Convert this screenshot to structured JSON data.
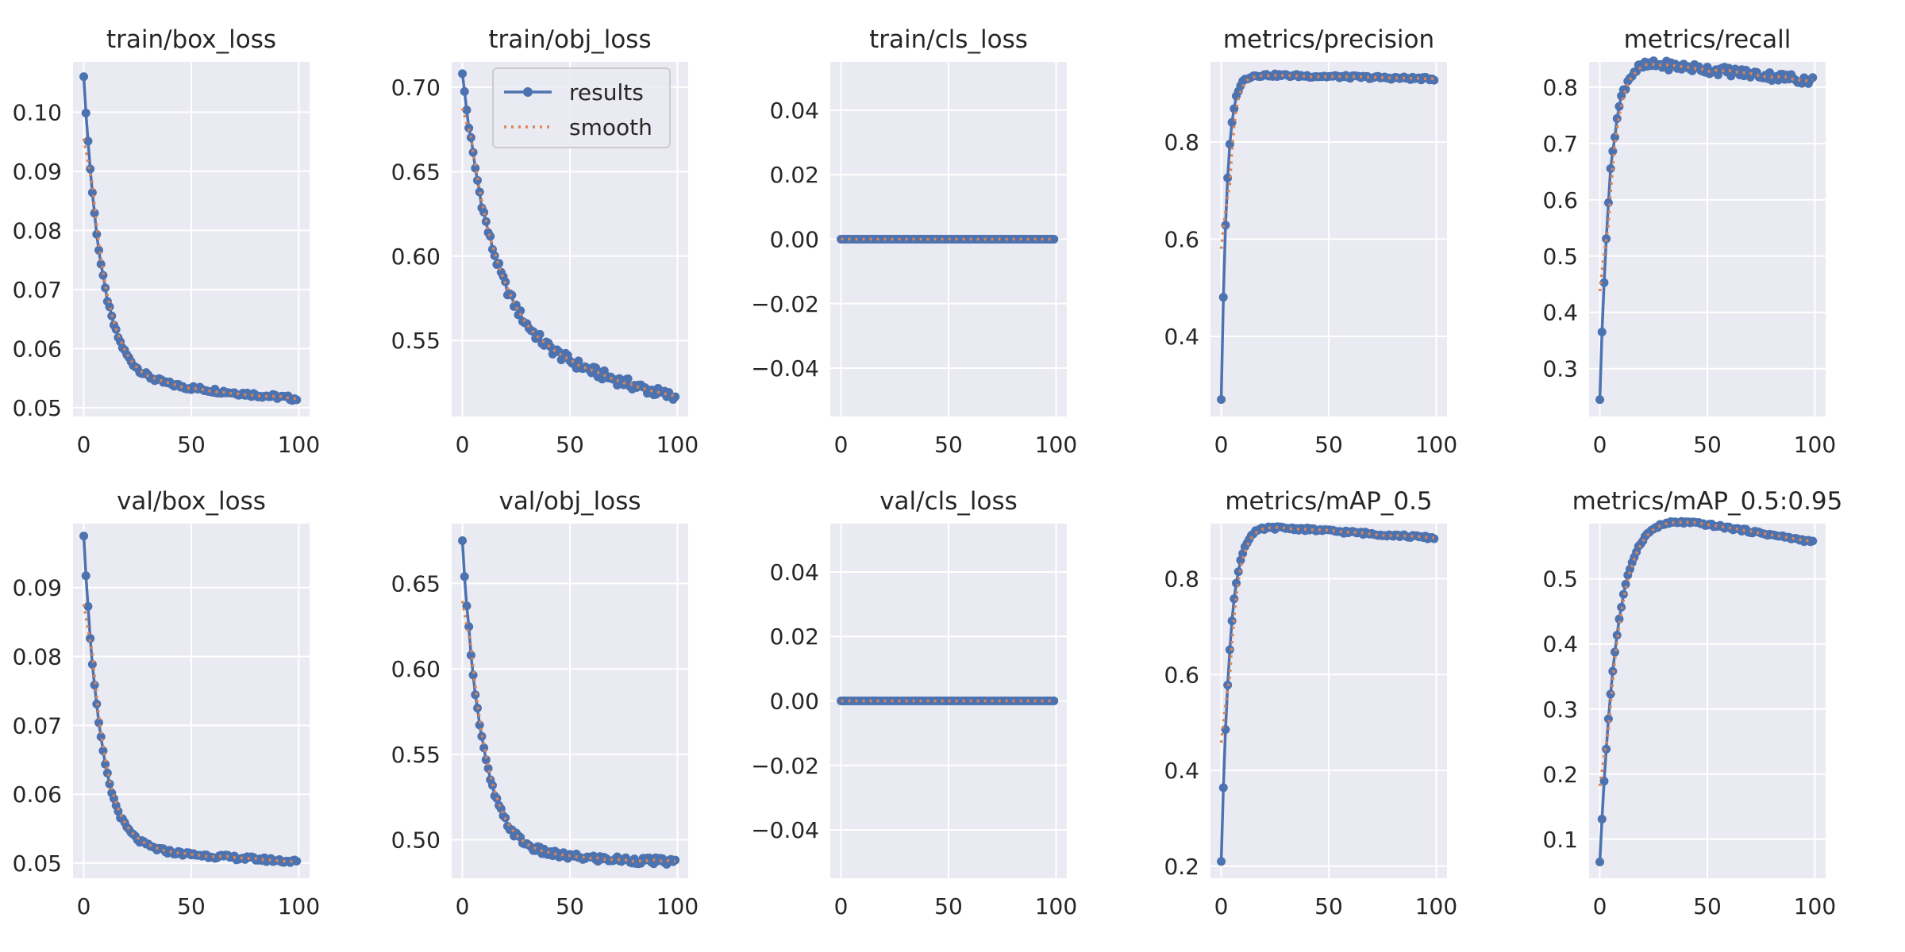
{
  "figure": {
    "background": "#ffffff",
    "axes_background": "#eaeaf2",
    "grid_color": "#ffffff",
    "results_color": "#4c72b0",
    "smooth_color": "#dd8452"
  },
  "legend": {
    "entries": [
      "results",
      "smooth"
    ],
    "placement": "top-right",
    "subplot_index": 1
  },
  "chart_data": [
    {
      "type": "line",
      "title": "train/box_loss",
      "xlim": [
        -5,
        105
      ],
      "ylim": [
        0.0485,
        0.1085
      ],
      "xticks": [
        0,
        50,
        100
      ],
      "yticks": [
        0.05,
        0.06,
        0.07,
        0.08,
        0.09,
        0.1
      ],
      "ytick_labels": [
        "0.05",
        "0.06",
        "0.07",
        "0.08",
        "0.09",
        "0.10"
      ],
      "curve": {
        "start": 0.106,
        "end": 0.0515,
        "rate": 0.12,
        "tail": 0.0035,
        "jitter": 0.0004
      },
      "series": [
        {
          "name": "results"
        },
        {
          "name": "smooth"
        }
      ]
    },
    {
      "type": "line",
      "title": "train/obj_loss",
      "xlim": [
        -5,
        105
      ],
      "ylim": [
        0.505,
        0.715
      ],
      "xticks": [
        0,
        50,
        100
      ],
      "yticks": [
        0.55,
        0.6,
        0.65,
        0.7
      ],
      "ytick_labels": [
        "0.55",
        "0.60",
        "0.65",
        "0.70"
      ],
      "curve": {
        "start": 0.708,
        "end": 0.516,
        "rate": 0.07,
        "tail": 0.035,
        "jitter": 0.003
      },
      "series": [
        {
          "name": "results"
        },
        {
          "name": "smooth"
        }
      ]
    },
    {
      "type": "line",
      "title": "train/cls_loss",
      "xlim": [
        -5,
        105
      ],
      "ylim": [
        -0.055,
        0.055
      ],
      "xticks": [
        0,
        50,
        100
      ],
      "yticks": [
        -0.04,
        -0.02,
        0.0,
        0.02,
        0.04
      ],
      "ytick_labels": [
        "−0.04",
        "−0.02",
        "0.00",
        "0.02",
        "0.04"
      ],
      "curve": {
        "start": 0.0,
        "end": 0.0,
        "rate": 0.1,
        "tail": 0.0,
        "jitter": 0.0
      },
      "series": [
        {
          "name": "results"
        },
        {
          "name": "smooth"
        }
      ]
    },
    {
      "type": "line",
      "title": "metrics/precision",
      "xlim": [
        -5,
        105
      ],
      "ylim": [
        0.235,
        0.965
      ],
      "xticks": [
        0,
        50,
        100
      ],
      "yticks": [
        0.4,
        0.6,
        0.8
      ],
      "ytick_labels": [
        "0.4",
        "0.6",
        "0.8"
      ],
      "curve": {
        "start": 0.27,
        "end": 0.93,
        "rate": 0.38,
        "tail": 0.01,
        "jitter": 0.003
      },
      "series": [
        {
          "name": "results"
        },
        {
          "name": "smooth"
        }
      ]
    },
    {
      "type": "line",
      "title": "metrics/recall",
      "xlim": [
        -5,
        105
      ],
      "ylim": [
        0.215,
        0.845
      ],
      "xticks": [
        0,
        50,
        100
      ],
      "yticks": [
        0.3,
        0.4,
        0.5,
        0.6,
        0.7,
        0.8
      ],
      "ytick_labels": [
        "0.3",
        "0.4",
        "0.5",
        "0.6",
        "0.7",
        "0.8"
      ],
      "curve": {
        "start": 0.245,
        "end": 0.812,
        "rate": 0.22,
        "tail": 0.04,
        "jitter": 0.008
      },
      "series": [
        {
          "name": "results"
        },
        {
          "name": "smooth"
        }
      ]
    },
    {
      "type": "line",
      "title": "val/box_loss",
      "xlim": [
        -5,
        105
      ],
      "ylim": [
        0.0478,
        0.0993
      ],
      "xticks": [
        0,
        50,
        100
      ],
      "yticks": [
        0.05,
        0.06,
        0.07,
        0.08,
        0.09
      ],
      "ytick_labels": [
        "0.05",
        "0.06",
        "0.07",
        "0.08",
        "0.09"
      ],
      "curve": {
        "start": 0.0975,
        "end": 0.0502,
        "rate": 0.13,
        "tail": 0.002,
        "jitter": 0.0003
      },
      "series": [
        {
          "name": "results"
        },
        {
          "name": "smooth"
        }
      ]
    },
    {
      "type": "line",
      "title": "val/obj_loss",
      "xlim": [
        -5,
        105
      ],
      "ylim": [
        0.4775,
        0.685
      ],
      "xticks": [
        0,
        50,
        100
      ],
      "yticks": [
        0.5,
        0.55,
        0.6,
        0.65
      ],
      "ytick_labels": [
        "0.50",
        "0.55",
        "0.60",
        "0.65"
      ],
      "curve": {
        "start": 0.675,
        "end": 0.487,
        "rate": 0.11,
        "tail": 0.005,
        "jitter": 0.002
      },
      "series": [
        {
          "name": "results"
        },
        {
          "name": "smooth"
        }
      ]
    },
    {
      "type": "line",
      "title": "val/cls_loss",
      "xlim": [
        -5,
        105
      ],
      "ylim": [
        -0.055,
        0.055
      ],
      "xticks": [
        0,
        50,
        100
      ],
      "yticks": [
        -0.04,
        -0.02,
        0.0,
        0.02,
        0.04
      ],
      "ytick_labels": [
        "−0.04",
        "−0.02",
        "0.00",
        "0.02",
        "0.04"
      ],
      "curve": {
        "start": 0.0,
        "end": 0.0,
        "rate": 0.1,
        "tail": 0.0,
        "jitter": 0.0
      },
      "series": [
        {
          "name": "results"
        },
        {
          "name": "smooth"
        }
      ]
    },
    {
      "type": "line",
      "title": "metrics/mAP_0.5",
      "xlim": [
        -5,
        105
      ],
      "ylim": [
        0.175,
        0.915
      ],
      "xticks": [
        0,
        50,
        100
      ],
      "yticks": [
        0.2,
        0.4,
        0.6,
        0.8
      ],
      "ytick_labels": [
        "0.2",
        "0.4",
        "0.6",
        "0.8"
      ],
      "curve": {
        "start": 0.21,
        "end": 0.885,
        "rate": 0.25,
        "tail": 0.03,
        "jitter": 0.003
      },
      "series": [
        {
          "name": "results"
        },
        {
          "name": "smooth"
        }
      ]
    },
    {
      "type": "line",
      "title": "metrics/mAP_0.5:0.95",
      "xlim": [
        -5,
        105
      ],
      "ylim": [
        0.04,
        0.585
      ],
      "xticks": [
        0,
        50,
        100
      ],
      "yticks": [
        0.1,
        0.2,
        0.3,
        0.4,
        0.5
      ],
      "ytick_labels": [
        "0.1",
        "0.2",
        "0.3",
        "0.4",
        "0.5"
      ],
      "curve": {
        "start": 0.065,
        "end": 0.557,
        "rate": 0.13,
        "tail": 0.055,
        "jitter": 0.002
      },
      "series": [
        {
          "name": "results"
        },
        {
          "name": "smooth"
        }
      ]
    }
  ]
}
